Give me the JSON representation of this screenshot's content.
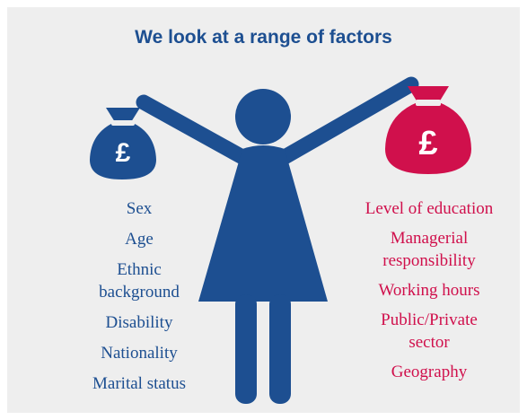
{
  "header": {
    "title": "We look at a range of factors"
  },
  "left_bag": {
    "symbol": "£"
  },
  "right_bag": {
    "symbol": "£"
  },
  "left_factors": [
    [
      "Sex"
    ],
    [
      "Age"
    ],
    [
      "Ethnic",
      "background"
    ],
    [
      "Disability"
    ],
    [
      "Nationality"
    ],
    [
      "Marital status"
    ]
  ],
  "right_factors": [
    [
      "Level of education"
    ],
    [
      "Managerial",
      "responsibility"
    ],
    [
      "Working hours"
    ],
    [
      "Public/Private",
      "sector"
    ],
    [
      "Geography"
    ]
  ]
}
